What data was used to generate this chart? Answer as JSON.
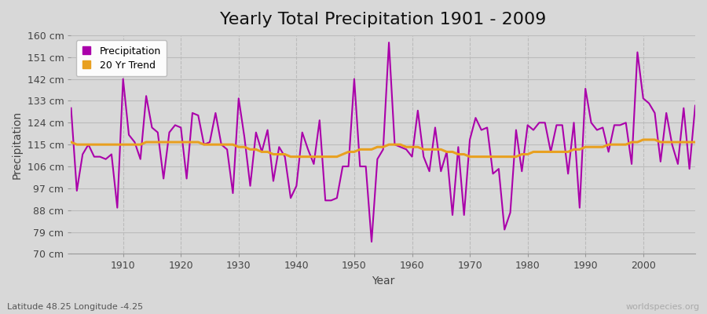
{
  "title": "Yearly Total Precipitation 1901 - 2009",
  "xlabel": "Year",
  "ylabel": "Precipitation",
  "subtitle": "Latitude 48.25 Longitude -4.25",
  "watermark": "worldspecies.org",
  "years": [
    1901,
    1902,
    1903,
    1904,
    1905,
    1906,
    1907,
    1908,
    1909,
    1910,
    1911,
    1912,
    1913,
    1914,
    1915,
    1916,
    1917,
    1918,
    1919,
    1920,
    1921,
    1922,
    1923,
    1924,
    1925,
    1926,
    1927,
    1928,
    1929,
    1930,
    1931,
    1932,
    1933,
    1934,
    1935,
    1936,
    1937,
    1938,
    1939,
    1940,
    1941,
    1942,
    1943,
    1944,
    1945,
    1946,
    1947,
    1948,
    1949,
    1950,
    1951,
    1952,
    1953,
    1954,
    1955,
    1956,
    1957,
    1958,
    1959,
    1960,
    1961,
    1962,
    1963,
    1964,
    1965,
    1966,
    1967,
    1968,
    1969,
    1970,
    1971,
    1972,
    1973,
    1974,
    1975,
    1976,
    1977,
    1978,
    1979,
    1980,
    1981,
    1982,
    1983,
    1984,
    1985,
    1986,
    1987,
    1988,
    1989,
    1990,
    1991,
    1992,
    1993,
    1994,
    1995,
    1996,
    1997,
    1998,
    1999,
    2000,
    2001,
    2002,
    2003,
    2004,
    2005,
    2006,
    2007,
    2008,
    2009
  ],
  "precipitation": [
    130,
    96,
    111,
    115,
    110,
    110,
    109,
    111,
    89,
    142,
    119,
    116,
    109,
    135,
    122,
    120,
    101,
    120,
    123,
    122,
    101,
    128,
    127,
    115,
    116,
    128,
    115,
    113,
    95,
    134,
    118,
    98,
    120,
    112,
    121,
    100,
    114,
    110,
    93,
    98,
    120,
    113,
    107,
    125,
    92,
    92,
    93,
    106,
    106,
    142,
    106,
    106,
    75,
    109,
    113,
    157,
    115,
    114,
    113,
    110,
    129,
    110,
    104,
    122,
    104,
    112,
    86,
    114,
    86,
    117,
    126,
    121,
    122,
    103,
    105,
    80,
    87,
    121,
    104,
    123,
    121,
    124,
    124,
    112,
    123,
    123,
    103,
    124,
    89,
    138,
    124,
    121,
    122,
    112,
    123,
    123,
    124,
    107,
    153,
    134,
    132,
    128,
    108,
    128,
    115,
    107,
    130,
    105,
    131
  ],
  "trend": [
    116,
    115,
    115,
    115,
    115,
    115,
    115,
    115,
    115,
    115,
    115,
    115,
    115,
    116,
    116,
    116,
    116,
    116,
    116,
    116,
    116,
    116,
    116,
    115,
    115,
    115,
    115,
    115,
    115,
    114,
    114,
    113,
    113,
    112,
    112,
    111,
    111,
    111,
    110,
    110,
    110,
    110,
    110,
    110,
    110,
    110,
    110,
    111,
    112,
    112,
    113,
    113,
    113,
    114,
    114,
    115,
    115,
    115,
    114,
    114,
    114,
    113,
    113,
    113,
    113,
    112,
    112,
    111,
    111,
    110,
    110,
    110,
    110,
    110,
    110,
    110,
    110,
    110,
    111,
    111,
    112,
    112,
    112,
    112,
    112,
    112,
    112,
    113,
    113,
    114,
    114,
    114,
    114,
    115,
    115,
    115,
    115,
    116,
    116,
    117,
    117,
    117,
    116,
    116,
    116,
    116,
    116,
    116,
    116
  ],
  "precip_color": "#aa00aa",
  "trend_color": "#e8a020",
  "background_color": "#d8d8d8",
  "plot_bg_color": "#d8d8d8",
  "ylim": [
    70,
    160
  ],
  "yticks": [
    70,
    79,
    88,
    97,
    106,
    115,
    124,
    133,
    142,
    151,
    160
  ],
  "ytick_labels": [
    "70 cm",
    "79 cm",
    "88 cm",
    "97 cm",
    "106 cm",
    "115 cm",
    "124 cm",
    "133 cm",
    "142 cm",
    "151 cm",
    "160 cm"
  ],
  "xticks": [
    1910,
    1920,
    1930,
    1940,
    1950,
    1960,
    1970,
    1980,
    1990,
    2000
  ],
  "grid_color": "#bbbbbb",
  "title_fontsize": 16,
  "label_fontsize": 10,
  "tick_fontsize": 9
}
